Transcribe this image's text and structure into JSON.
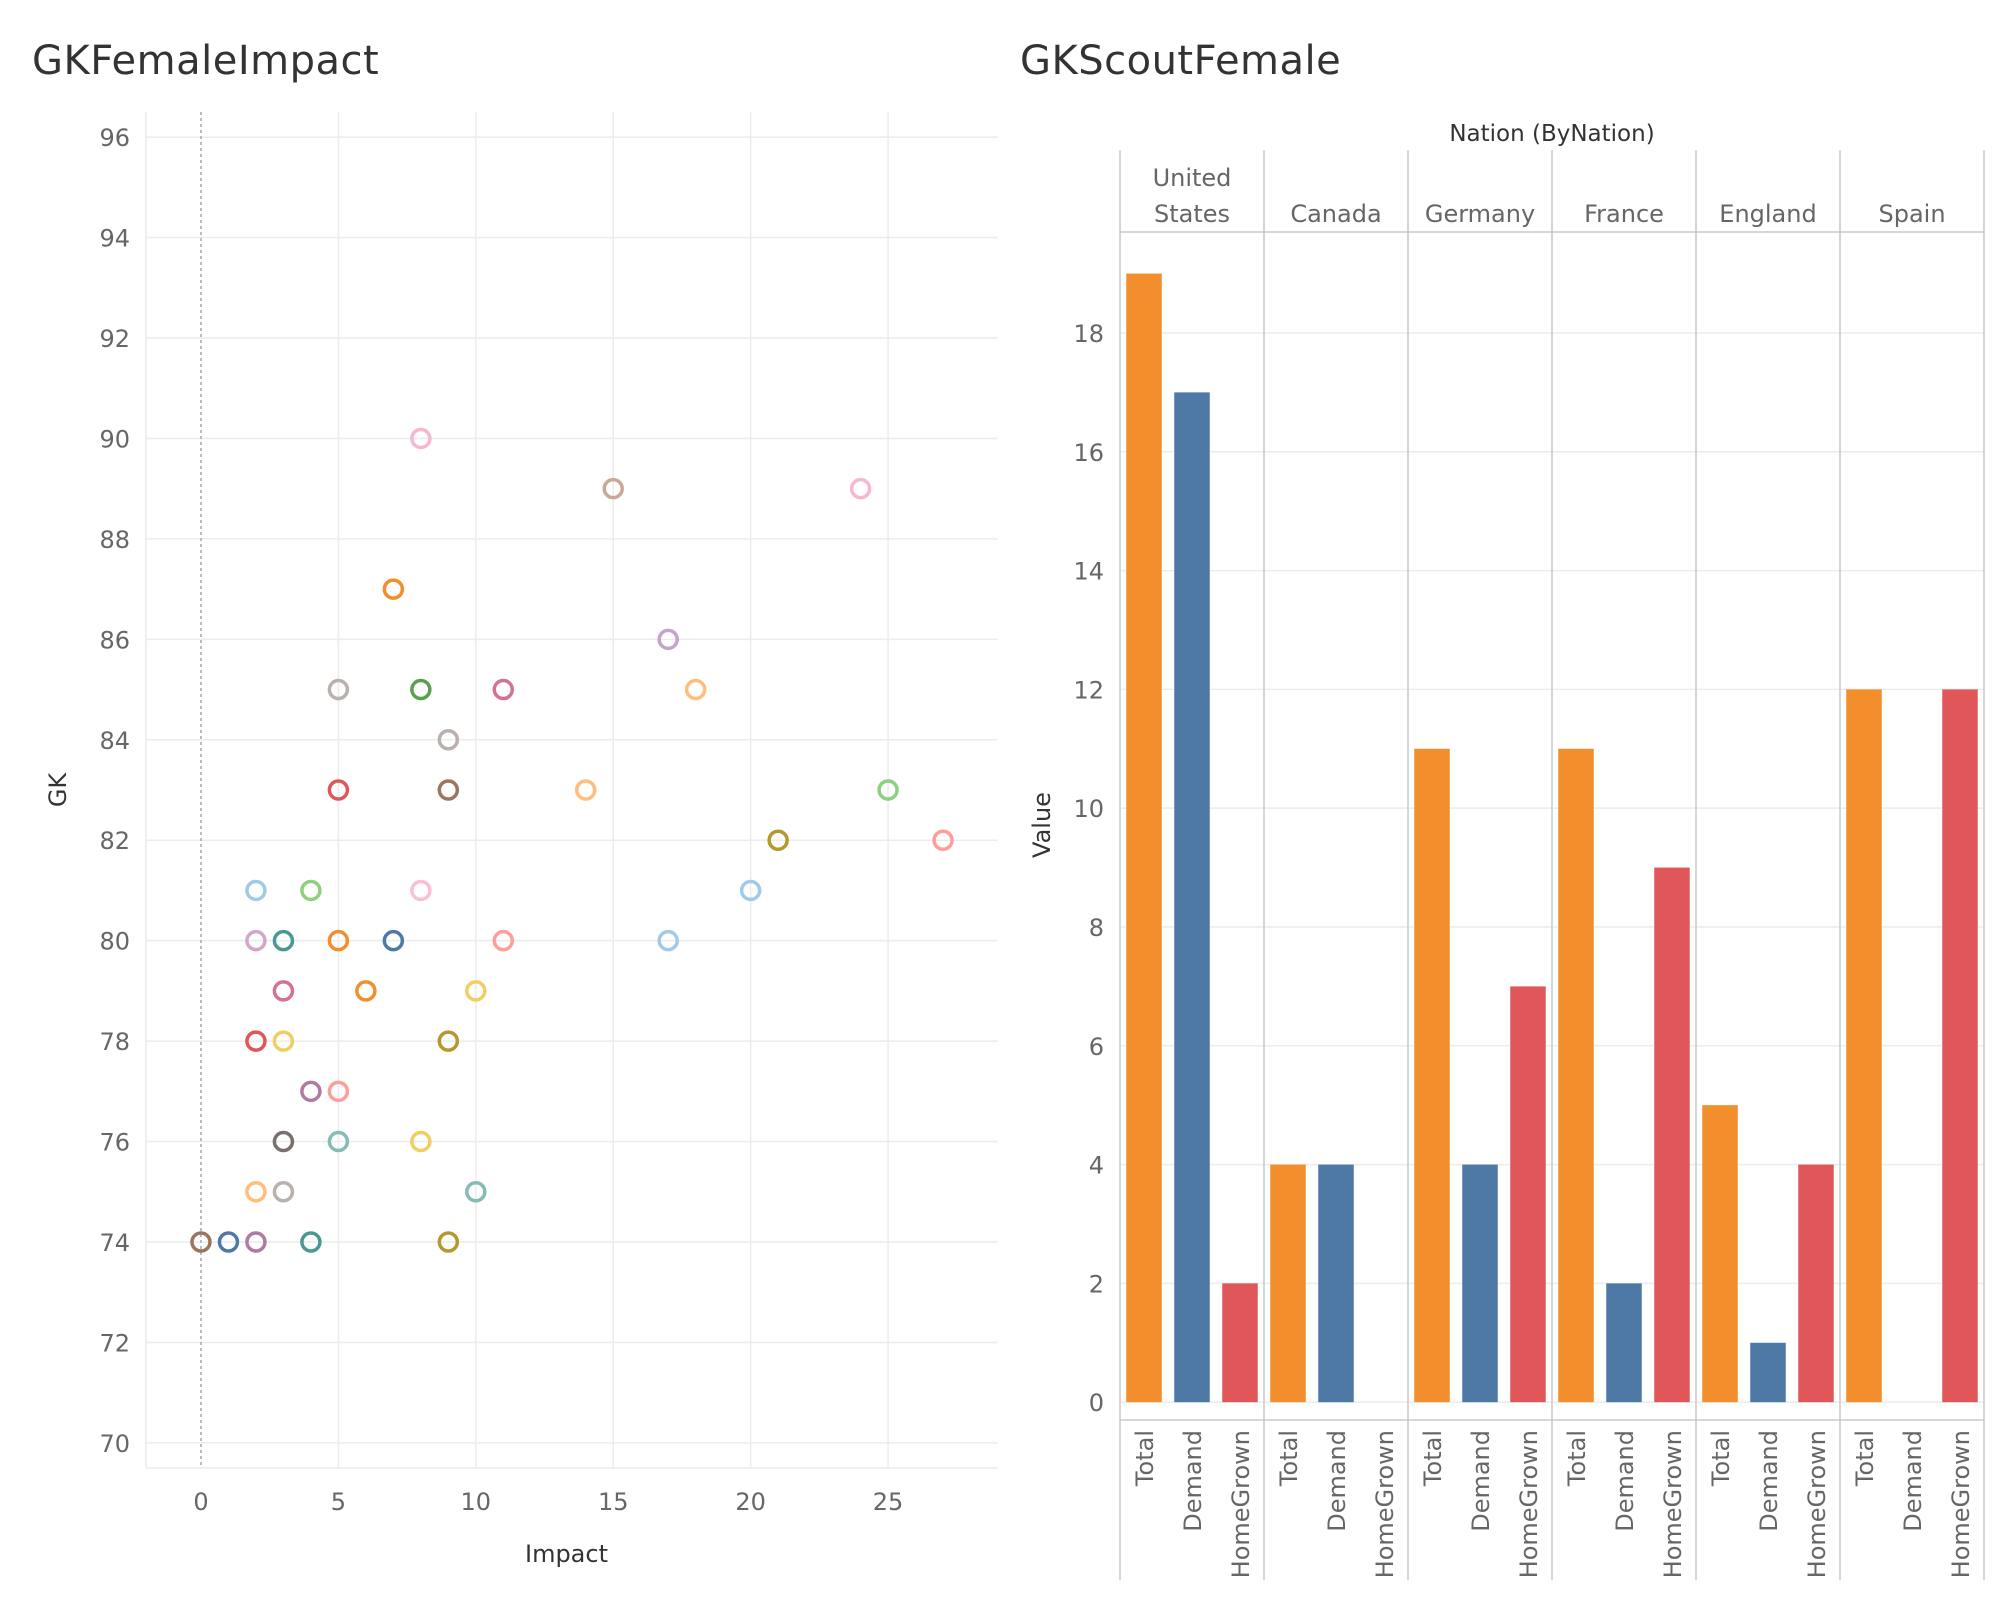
{
  "chart_data": [
    {
      "type": "scatter",
      "title": "GKFemaleImpact",
      "xlabel": "Impact",
      "ylabel": "GK",
      "xlim": [
        -2,
        29
      ],
      "ylim": [
        69.5,
        96.5
      ],
      "x_ticks": [
        0,
        5,
        10,
        15,
        20,
        25
      ],
      "y_ticks": [
        70,
        72,
        74,
        76,
        78,
        80,
        82,
        84,
        86,
        88,
        90,
        92,
        94,
        96
      ],
      "reference_line_x": 0,
      "grid": true,
      "legend": "none",
      "points": [
        {
          "x": 8,
          "y": 90,
          "color": "#f7b6d2"
        },
        {
          "x": 15,
          "y": 89,
          "color": "#c9a89a"
        },
        {
          "x": 24,
          "y": 89,
          "color": "#f7b6d2"
        },
        {
          "x": 7,
          "y": 87,
          "color": "#f28e2b"
        },
        {
          "x": 17,
          "y": 86,
          "color": "#c8a2cf"
        },
        {
          "x": 5,
          "y": 85,
          "color": "#bab0ac"
        },
        {
          "x": 8,
          "y": 85,
          "color": "#59a14f"
        },
        {
          "x": 11,
          "y": 85,
          "color": "#d37295"
        },
        {
          "x": 18,
          "y": 85,
          "color": "#ffbe7d"
        },
        {
          "x": 9,
          "y": 84,
          "color": "#bab0ac"
        },
        {
          "x": 5,
          "y": 83,
          "color": "#e15759"
        },
        {
          "x": 9,
          "y": 83,
          "color": "#9c755f"
        },
        {
          "x": 14,
          "y": 83,
          "color": "#ffbe7d"
        },
        {
          "x": 25,
          "y": 83,
          "color": "#8cd17d"
        },
        {
          "x": 21,
          "y": 82,
          "color": "#b6992d"
        },
        {
          "x": 27,
          "y": 82,
          "color": "#ff9d9a"
        },
        {
          "x": 2,
          "y": 81,
          "color": "#a0cbe8"
        },
        {
          "x": 4,
          "y": 81,
          "color": "#8cd17d"
        },
        {
          "x": 8,
          "y": 81,
          "color": "#fabfd2"
        },
        {
          "x": 20,
          "y": 81,
          "color": "#a0cbe8"
        },
        {
          "x": 2,
          "y": 80,
          "color": "#d4a6c8"
        },
        {
          "x": 3,
          "y": 80,
          "color": "#499894"
        },
        {
          "x": 5,
          "y": 80,
          "color": "#f28e2b"
        },
        {
          "x": 7,
          "y": 80,
          "color": "#4e79a7"
        },
        {
          "x": 11,
          "y": 80,
          "color": "#ff9d9a"
        },
        {
          "x": 17,
          "y": 80,
          "color": "#a0cbe8"
        },
        {
          "x": 3,
          "y": 79,
          "color": "#d37295"
        },
        {
          "x": 6,
          "y": 79,
          "color": "#f28e2b"
        },
        {
          "x": 10,
          "y": 79,
          "color": "#f1ce63"
        },
        {
          "x": 2,
          "y": 78,
          "color": "#e15759"
        },
        {
          "x": 3,
          "y": 78,
          "color": "#f1ce63"
        },
        {
          "x": 9,
          "y": 78,
          "color": "#b6992d"
        },
        {
          "x": 4,
          "y": 77,
          "color": "#b07aa1"
        },
        {
          "x": 5,
          "y": 77,
          "color": "#ff9d9a"
        },
        {
          "x": 3,
          "y": 76,
          "color": "#79706e"
        },
        {
          "x": 5,
          "y": 76,
          "color": "#86bcb6"
        },
        {
          "x": 8,
          "y": 76,
          "color": "#f1ce63"
        },
        {
          "x": 2,
          "y": 75,
          "color": "#ffbe7d"
        },
        {
          "x": 3,
          "y": 75,
          "color": "#bab0ac"
        },
        {
          "x": 10,
          "y": 75,
          "color": "#86bcb6"
        },
        {
          "x": 0,
          "y": 74,
          "color": "#9c755f"
        },
        {
          "x": 1,
          "y": 74,
          "color": "#4e79a7"
        },
        {
          "x": 2,
          "y": 74,
          "color": "#b07aa1"
        },
        {
          "x": 4,
          "y": 74,
          "color": "#499894"
        },
        {
          "x": 9,
          "y": 74,
          "color": "#b6992d"
        }
      ]
    },
    {
      "type": "bar",
      "title": "GKScoutFemale",
      "column_header": "Nation (ByNation)",
      "ylabel": "Value",
      "ylim": [
        -0.3,
        19.7
      ],
      "y_ticks": [
        0,
        2,
        4,
        6,
        8,
        10,
        12,
        14,
        16,
        18
      ],
      "grid": true,
      "legend": "none",
      "categories": [
        "Total",
        "Demand",
        "HomeGrown"
      ],
      "category_colors": [
        "#f28e2b",
        "#4e79a7",
        "#e15759"
      ],
      "groups": [
        {
          "label": [
            "United",
            "States"
          ],
          "values": [
            19,
            17,
            2
          ]
        },
        {
          "label": [
            "Canada"
          ],
          "values": [
            4,
            4,
            0
          ]
        },
        {
          "label": [
            "Germany"
          ],
          "values": [
            11,
            4,
            7
          ]
        },
        {
          "label": [
            "France"
          ],
          "values": [
            11,
            2,
            9
          ]
        },
        {
          "label": [
            "England"
          ],
          "values": [
            5,
            1,
            4
          ]
        },
        {
          "label": [
            "Spain"
          ],
          "values": [
            12,
            0,
            12
          ]
        }
      ]
    }
  ]
}
